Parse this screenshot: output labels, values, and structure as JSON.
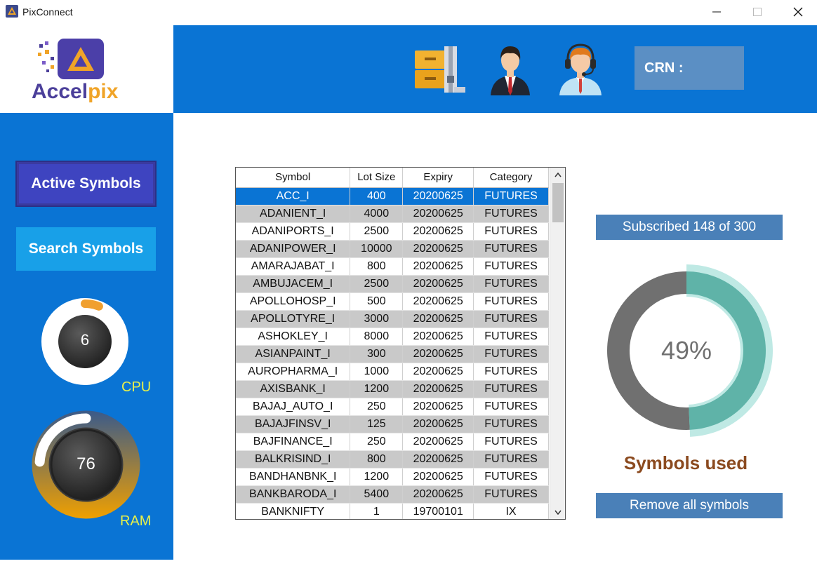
{
  "window": {
    "title": "PixConnect",
    "controls": [
      "minimize",
      "maximize",
      "close"
    ]
  },
  "logo": {
    "text_main": "Accel",
    "text_accent": "pix",
    "brand_colors": {
      "primary": "#4b3f9a",
      "accent": "#f0a428"
    }
  },
  "header": {
    "icons": [
      "archive-icon",
      "user-icon",
      "support-agent-icon"
    ],
    "crn_label": "CRN :",
    "background": "#0a74d4"
  },
  "sidebar": {
    "active_symbols_label": "Active Symbols",
    "search_symbols_label": "Search Symbols",
    "cpu": {
      "value": "6",
      "label": "CPU",
      "fraction": 0.06
    },
    "ram": {
      "value": "76",
      "label": "RAM",
      "fraction": 0.76
    }
  },
  "table": {
    "columns": [
      "Symbol",
      "Lot Size",
      "Expiry",
      "Category"
    ],
    "selected_index": 0,
    "rows": [
      [
        "ACC_I",
        "400",
        "20200625",
        "FUTURES"
      ],
      [
        "ADANIENT_I",
        "4000",
        "20200625",
        "FUTURES"
      ],
      [
        "ADANIPORTS_I",
        "2500",
        "20200625",
        "FUTURES"
      ],
      [
        "ADANIPOWER_I",
        "10000",
        "20200625",
        "FUTURES"
      ],
      [
        "AMARAJABAT_I",
        "800",
        "20200625",
        "FUTURES"
      ],
      [
        "AMBUJACEM_I",
        "2500",
        "20200625",
        "FUTURES"
      ],
      [
        "APOLLOHOSP_I",
        "500",
        "20200625",
        "FUTURES"
      ],
      [
        "APOLLOTYRE_I",
        "3000",
        "20200625",
        "FUTURES"
      ],
      [
        "ASHOKLEY_I",
        "8000",
        "20200625",
        "FUTURES"
      ],
      [
        "ASIANPAINT_I",
        "300",
        "20200625",
        "FUTURES"
      ],
      [
        "AUROPHARMA_I",
        "1000",
        "20200625",
        "FUTURES"
      ],
      [
        "AXISBANK_I",
        "1200",
        "20200625",
        "FUTURES"
      ],
      [
        "BAJAJ_AUTO_I",
        "250",
        "20200625",
        "FUTURES"
      ],
      [
        "BAJAJFINSV_I",
        "125",
        "20200625",
        "FUTURES"
      ],
      [
        "BAJFINANCE_I",
        "250",
        "20200625",
        "FUTURES"
      ],
      [
        "BALKRISIND_I",
        "800",
        "20200625",
        "FUTURES"
      ],
      [
        "BANDHANBNK_I",
        "1200",
        "20200625",
        "FUTURES"
      ],
      [
        "BANKBARODA_I",
        "5400",
        "20200625",
        "FUTURES"
      ],
      [
        "BANKNIFTY",
        "1",
        "19700101",
        "IX"
      ]
    ]
  },
  "subscription": {
    "label": "Subscribed 148 of 300",
    "used": 148,
    "total": 300,
    "percent_label": "49%",
    "symbols_used_label": "Symbols used",
    "remove_label": "Remove all symbols",
    "colors": {
      "used": "#5fb3a8",
      "remaining": "#707070",
      "halo": "#bfe9e4"
    }
  }
}
